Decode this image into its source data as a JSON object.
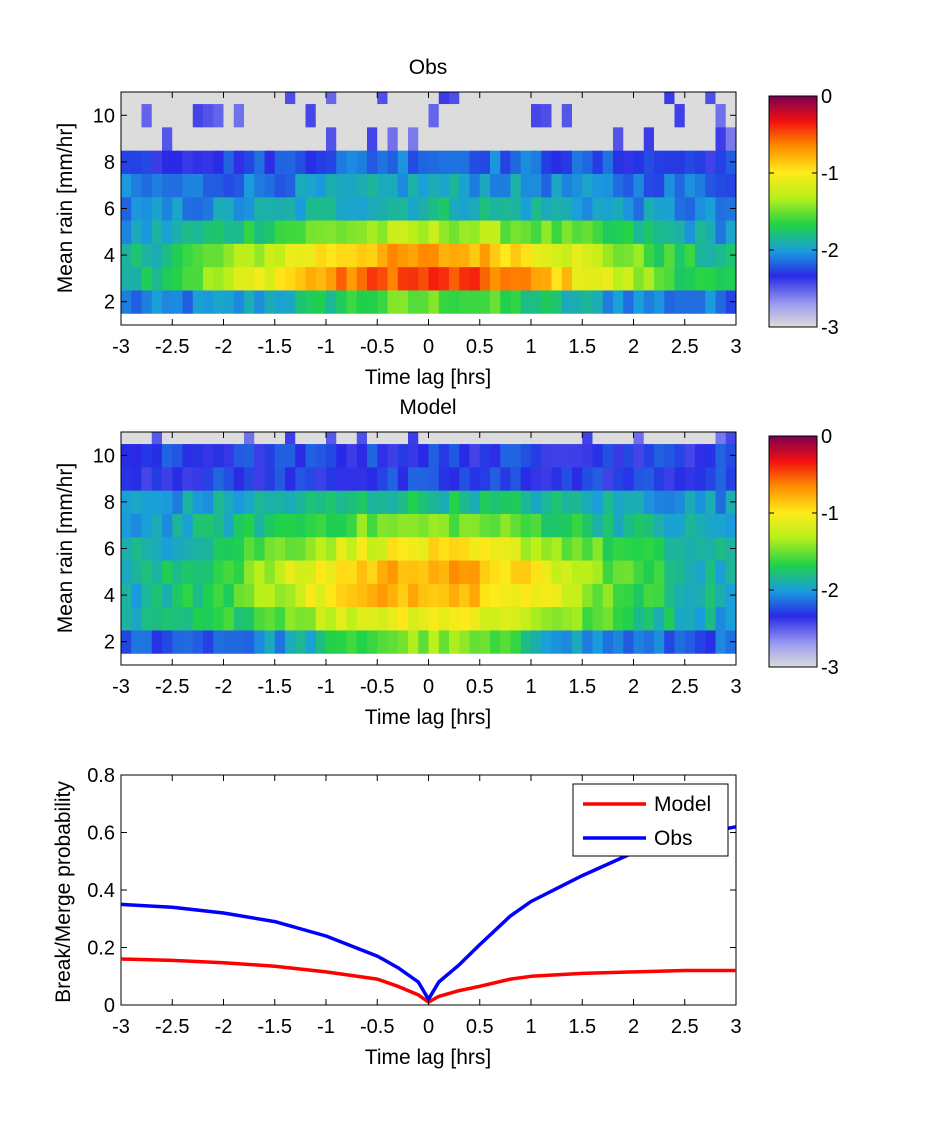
{
  "chart_data": [
    {
      "type": "heatmap",
      "title": "Obs",
      "xlabel": "Time lag [hrs]",
      "ylabel": "Mean rain [mm/hr]",
      "xlim": [
        -3,
        3
      ],
      "ylim": [
        1,
        11
      ],
      "xticks": [
        "-3",
        "-2.5",
        "-2",
        "-1.5",
        "-1",
        "-0.5",
        "0",
        "0.5",
        "1",
        "1.5",
        "2",
        "2.5",
        "3"
      ],
      "yticks": [
        "2",
        "4",
        "6",
        "8",
        "10"
      ],
      "colorbar": {
        "range": [
          -3,
          0
        ],
        "ticks": [
          "0",
          "-1",
          "-2",
          "-3"
        ]
      },
      "x_bins": 60,
      "y_rows": [
        2,
        3,
        4,
        5,
        6,
        7,
        8,
        9,
        10,
        11
      ],
      "peak": {
        "x": 0,
        "y": 3,
        "value": -0.45
      },
      "grey_region": "rain >= 9 at all lags; upper-right corner beyond 1 hr"
    },
    {
      "type": "heatmap",
      "title": "Model",
      "xlabel": "Time lag [hrs]",
      "ylabel": "Mean rain [mm/hr]",
      "xlim": [
        -3,
        3
      ],
      "ylim": [
        1,
        11
      ],
      "xticks": [
        "-3",
        "-2.5",
        "-2",
        "-1.5",
        "-1",
        "-0.5",
        "0",
        "0.5",
        "1",
        "1.5",
        "2",
        "2.5",
        "3"
      ],
      "yticks": [
        "2",
        "4",
        "6",
        "8",
        "10"
      ],
      "colorbar": {
        "range": [
          -3,
          0
        ],
        "ticks": [
          "0",
          "-1",
          "-2",
          "-3"
        ]
      },
      "x_bins": 60,
      "y_rows": [
        2,
        3,
        4,
        5,
        6,
        7,
        8,
        9,
        10,
        11
      ],
      "peak": {
        "x": 0,
        "y": 4.5,
        "value": -0.75
      },
      "grey_region": "rain >= 10.5 at all lags"
    },
    {
      "type": "line",
      "xlabel": "Time lag [hrs]",
      "ylabel": "Break/Merge probability",
      "xlim": [
        -3,
        3
      ],
      "ylim": [
        0,
        0.8
      ],
      "xticks": [
        "-3",
        "-2.5",
        "-2",
        "-1.5",
        "-1",
        "-0.5",
        "0",
        "0.5",
        "1",
        "1.5",
        "2",
        "2.5",
        "3"
      ],
      "yticks": [
        "0",
        "0.2",
        "0.4",
        "0.6",
        "0.8"
      ],
      "legend": "top-right",
      "series": [
        {
          "name": "Model",
          "color": "#ff0000",
          "x": [
            -3,
            -2.5,
            -2,
            -1.5,
            -1,
            -0.5,
            -0.3,
            -0.1,
            0,
            0.1,
            0.3,
            0.5,
            0.8,
            1,
            1.5,
            2,
            2.5,
            3
          ],
          "y": [
            0.16,
            0.155,
            0.147,
            0.135,
            0.115,
            0.09,
            0.065,
            0.035,
            0.01,
            0.03,
            0.05,
            0.065,
            0.09,
            0.1,
            0.11,
            0.115,
            0.12,
            0.12
          ]
        },
        {
          "name": "Obs",
          "color": "#0000ff",
          "x": [
            -3,
            -2.5,
            -2,
            -1.5,
            -1,
            -0.5,
            -0.3,
            -0.1,
            0,
            0.1,
            0.3,
            0.5,
            0.8,
            1,
            1.5,
            2,
            2.5,
            2.7,
            3
          ],
          "y": [
            0.35,
            0.34,
            0.32,
            0.29,
            0.24,
            0.17,
            0.13,
            0.08,
            0.02,
            0.08,
            0.14,
            0.21,
            0.31,
            0.36,
            0.45,
            0.53,
            0.58,
            0.6,
            0.62
          ]
        }
      ]
    }
  ]
}
